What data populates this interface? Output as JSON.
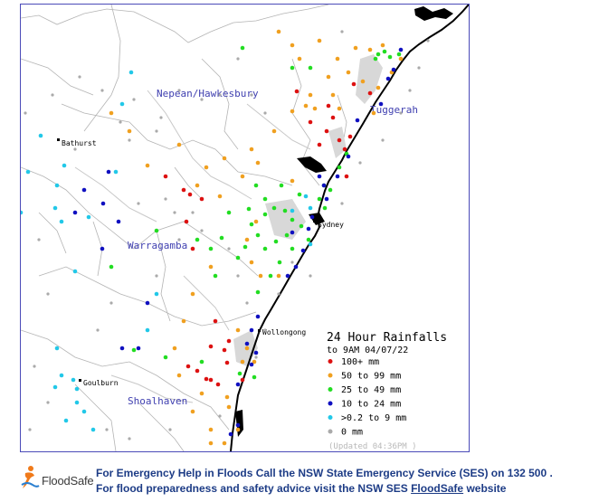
{
  "map": {
    "regions": [
      "Nepean/Hawkesbury",
      "Tuggerah",
      "Warragamba",
      "Shoalhaven"
    ],
    "towns": [
      "Bathurst",
      "Sydney",
      "Wollongong",
      "Goulburn"
    ]
  },
  "legend": {
    "title": "24 Hour Rainfalls",
    "subtitle": "to 9AM 04/07/22",
    "items": [
      {
        "label": "100+ mm",
        "color": "#dd1111"
      },
      {
        "label": "50  to 99 mm",
        "color": "#f0a020"
      },
      {
        "label": "25  to 49 mm",
        "color": "#22dd22"
      },
      {
        "label": "10  to 24 mm",
        "color": "#1010c0"
      },
      {
        "label": ">0.2 to 9 mm",
        "color": "#22c8e8"
      },
      {
        "label": "0 mm",
        "color": "#aaaaaa"
      }
    ],
    "updated": "(Updated 04:36PM  )"
  },
  "footer": {
    "logo_text": "FloodSafe",
    "line1": "For Emergency Help in Floods Call the NSW State Emergency Service (SES) on 132 500 .",
    "line2_prefix": "For flood preparedness and safety advice visit the NSW SES ",
    "line2_link": "FloodSafe",
    "line2_suffix": " website"
  },
  "colors": {
    "frame_border": "#4a4ab8",
    "footer_text": "#1d3c86",
    "region_label": "#4040b0"
  }
}
